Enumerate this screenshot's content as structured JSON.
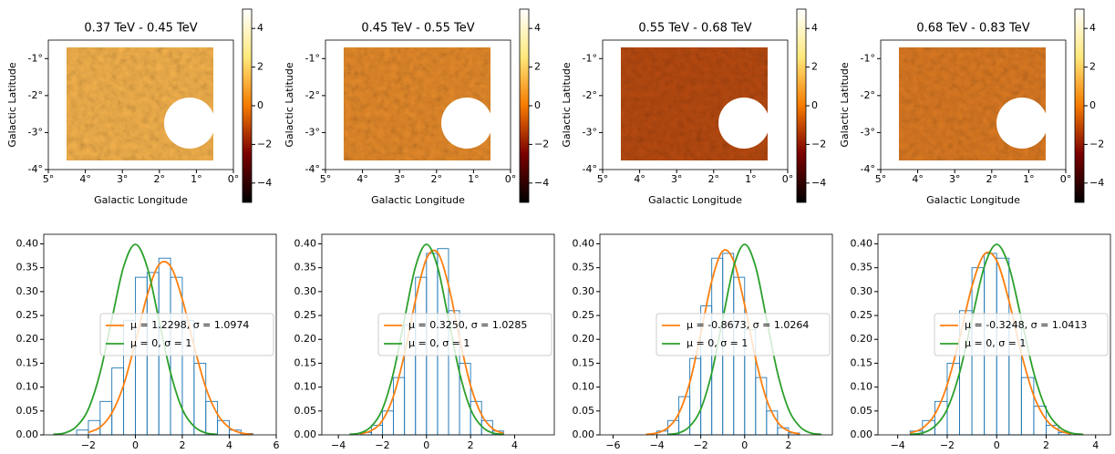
{
  "chart_data": [
    {
      "type": "image",
      "title": "0.37 TeV - 0.45 TeV",
      "xlabel": "Galactic Longitude",
      "ylabel": "Galactic Latitude",
      "color": "#f5b24c",
      "xlim": [
        5,
        0
      ],
      "ylim": [
        -4,
        -0.5
      ],
      "xticks": [
        {
          "value": 5,
          "label": "5°"
        },
        {
          "value": 4,
          "label": "4°"
        },
        {
          "value": 3,
          "label": "3°"
        },
        {
          "value": 2,
          "label": "2°"
        },
        {
          "value": 1,
          "label": "1°"
        },
        {
          "value": 0,
          "label": "0°"
        }
      ],
      "yticks": [
        {
          "value": -1,
          "label": "-1°"
        },
        {
          "value": -2,
          "label": "-2°"
        },
        {
          "value": -3,
          "label": "-3°"
        },
        {
          "value": -4,
          "label": "-4°"
        }
      ],
      "colormap": [
        "#000000",
        "#7a0000",
        "#f57a00",
        "#ffe87a",
        "#ffffff"
      ],
      "clim": [
        -5,
        5
      ],
      "cticks": [
        4,
        2,
        0,
        {
          "value": -2,
          "label": "−2"
        },
        {
          "value": -4,
          "label": "−4"
        }
      ]
    },
    {
      "type": "image",
      "title": "0.45 TeV - 0.55 TeV",
      "xlabel": "Galactic Longitude",
      "ylabel": "Galactic Latitude",
      "color": "#e58a2a",
      "xlim": [
        5,
        0
      ],
      "ylim": [
        -4,
        -0.5
      ],
      "xticks": [
        {
          "value": 5,
          "label": "5°"
        },
        {
          "value": 4,
          "label": "4°"
        },
        {
          "value": 3,
          "label": "3°"
        },
        {
          "value": 2,
          "label": "2°"
        },
        {
          "value": 1,
          "label": "1°"
        },
        {
          "value": 0,
          "label": "0°"
        }
      ],
      "yticks": [
        {
          "value": -1,
          "label": "-1°"
        },
        {
          "value": -2,
          "label": "-2°"
        },
        {
          "value": -3,
          "label": "-3°"
        },
        {
          "value": -4,
          "label": "-4°"
        }
      ],
      "colormap": [
        "#000000",
        "#7a0000",
        "#f57a00",
        "#ffe87a",
        "#ffffff"
      ],
      "clim": [
        -5,
        5
      ],
      "cticks": [
        4,
        2,
        0,
        {
          "value": -2,
          "label": "−2"
        },
        {
          "value": -4,
          "label": "−4"
        }
      ]
    },
    {
      "type": "image",
      "title": "0.55 TeV - 0.68 TeV",
      "xlabel": "Galactic Longitude",
      "ylabel": "Galactic Latitude",
      "color": "#b84a10",
      "xlim": [
        5,
        0
      ],
      "ylim": [
        -4,
        -0.5
      ],
      "xticks": [
        {
          "value": 5,
          "label": "5°"
        },
        {
          "value": 4,
          "label": "4°"
        },
        {
          "value": 3,
          "label": "3°"
        },
        {
          "value": 2,
          "label": "2°"
        },
        {
          "value": 1,
          "label": "1°"
        },
        {
          "value": 0,
          "label": "0°"
        }
      ],
      "yticks": [
        {
          "value": -1,
          "label": "-1°"
        },
        {
          "value": -2,
          "label": "-2°"
        },
        {
          "value": -3,
          "label": "-3°"
        },
        {
          "value": -4,
          "label": "-4°"
        }
      ],
      "colormap": [
        "#000000",
        "#7a0000",
        "#f57a00",
        "#ffe87a",
        "#ffffff"
      ],
      "clim": [
        -5,
        5
      ],
      "cticks": [
        4,
        2,
        0,
        {
          "value": -2,
          "label": "−2"
        },
        {
          "value": -4,
          "label": "−4"
        }
      ]
    },
    {
      "type": "image",
      "title": "0.68 TeV - 0.83 TeV",
      "xlabel": "Galactic Longitude",
      "ylabel": "Galactic Latitude",
      "color": "#dc7a22",
      "xlim": [
        5,
        0
      ],
      "ylim": [
        -4,
        -0.5
      ],
      "xticks": [
        {
          "value": 5,
          "label": "5°"
        },
        {
          "value": 4,
          "label": "4°"
        },
        {
          "value": 3,
          "label": "3°"
        },
        {
          "value": 2,
          "label": "2°"
        },
        {
          "value": 1,
          "label": "1°"
        },
        {
          "value": 0,
          "label": "0°"
        }
      ],
      "yticks": [
        {
          "value": -1,
          "label": "-1°"
        },
        {
          "value": -2,
          "label": "-2°"
        },
        {
          "value": -3,
          "label": "-3°"
        },
        {
          "value": -4,
          "label": "-4°"
        }
      ],
      "colormap": [
        "#000000",
        "#7a0000",
        "#f57a00",
        "#ffe87a",
        "#ffffff"
      ],
      "clim": [
        -5,
        5
      ],
      "cticks": [
        4,
        2,
        0,
        {
          "value": -2,
          "label": "−2"
        },
        {
          "value": -4,
          "label": "−4"
        }
      ]
    },
    {
      "type": "histogram",
      "color": "#1f77b4",
      "legend": "center right",
      "xlim": [
        -3.9,
        6.0
      ],
      "ylim": [
        0,
        0.42
      ],
      "xticks": [
        {
          "value": -2,
          "label": "−2"
        },
        0,
        2,
        4,
        6
      ],
      "yticks": [
        {
          "value": 0,
          "label": "0.00"
        },
        0.05,
        {
          "value": 0.1,
          "label": "0.10"
        },
        0.15,
        {
          "value": 0.2,
          "label": "0.20"
        },
        0.25,
        {
          "value": 0.3,
          "label": "0.30"
        },
        0.35,
        {
          "value": 0.4,
          "label": "0.40"
        }
      ],
      "bins": [
        -2.5,
        -2,
        -1.5,
        -1,
        -0.5,
        0,
        0.5,
        1,
        1.5,
        2,
        2.5,
        3,
        3.5,
        4,
        4.5,
        5
      ],
      "values": [
        0.01,
        0.03,
        0.07,
        0.14,
        0.24,
        0.33,
        0.34,
        0.37,
        0.33,
        0.24,
        0.15,
        0.07,
        0.03,
        0.01,
        0.003
      ],
      "series": [
        {
          "name": "μ = 1.2298, σ = 1.0974",
          "color": "#ff7f0e",
          "x": [
            -2,
            -1.5,
            -1,
            -0.5,
            0,
            0.5,
            1,
            1.5,
            2,
            2.5,
            3,
            3.5,
            4,
            4.5,
            5
          ],
          "values": [
            0.005,
            0.016,
            0.046,
            0.104,
            0.194,
            0.291,
            0.356,
            0.353,
            0.284,
            0.186,
            0.099,
            0.043,
            0.015,
            0.004,
            0.001
          ]
        },
        {
          "name": "μ = 0, σ = 1",
          "color": "#2ca02c",
          "x": [
            -3.5,
            -3,
            -2.5,
            -2,
            -1.5,
            -1,
            -0.5,
            0,
            0.5,
            1,
            1.5,
            2,
            2.5,
            3,
            3.5
          ],
          "values": [
            0.001,
            0.004,
            0.018,
            0.054,
            0.13,
            0.242,
            0.352,
            0.399,
            0.352,
            0.242,
            0.13,
            0.054,
            0.018,
            0.004,
            0.001
          ]
        }
      ]
    },
    {
      "type": "histogram",
      "color": "#1f77b4",
      "legend": "center right",
      "xlim": [
        -4.75,
        5.8
      ],
      "ylim": [
        0,
        0.42
      ],
      "xticks": [
        {
          "value": -4,
          "label": "−4"
        },
        {
          "value": -2,
          "label": "−2"
        },
        0,
        2,
        4
      ],
      "yticks": [
        {
          "value": 0,
          "label": "0.00"
        },
        0.05,
        {
          "value": 0.1,
          "label": "0.10"
        },
        0.15,
        {
          "value": 0.2,
          "label": "0.20"
        },
        0.25,
        {
          "value": 0.3,
          "label": "0.30"
        },
        0.35,
        {
          "value": 0.4,
          "label": "0.40"
        }
      ],
      "bins": [
        -3,
        -2.5,
        -2,
        -1.5,
        -1,
        -0.5,
        0,
        0.5,
        1,
        1.5,
        2,
        2.5,
        3,
        3.5
      ],
      "values": [
        0.005,
        0.02,
        0.05,
        0.12,
        0.23,
        0.33,
        0.38,
        0.39,
        0.26,
        0.15,
        0.07,
        0.03,
        0.008
      ],
      "series": [
        {
          "name": "μ = 0.3250, σ = 1.0285",
          "color": "#ff7f0e",
          "x": [
            -3,
            -2.5,
            -2,
            -1.5,
            -1,
            -0.5,
            0,
            0.5,
            1,
            1.5,
            2,
            2.5,
            3,
            3.5
          ],
          "values": [
            0.002,
            0.009,
            0.03,
            0.081,
            0.169,
            0.282,
            0.369,
            0.382,
            0.313,
            0.202,
            0.103,
            0.042,
            0.013,
            0.003
          ]
        },
        {
          "name": "μ = 0, σ = 1",
          "color": "#2ca02c",
          "x": [
            -3.5,
            -3,
            -2.5,
            -2,
            -1.5,
            -1,
            -0.5,
            0,
            0.5,
            1,
            1.5,
            2,
            2.5,
            3,
            3.5
          ],
          "values": [
            0.001,
            0.004,
            0.018,
            0.054,
            0.13,
            0.242,
            0.352,
            0.399,
            0.352,
            0.242,
            0.13,
            0.054,
            0.018,
            0.004,
            0.001
          ]
        }
      ]
    },
    {
      "type": "histogram",
      "color": "#1f77b4",
      "legend": "center right",
      "xlim": [
        -6.6,
        4.0
      ],
      "ylim": [
        0,
        0.42
      ],
      "xticks": [
        {
          "value": -6,
          "label": "−6"
        },
        {
          "value": -4,
          "label": "−4"
        },
        {
          "value": -2,
          "label": "−2"
        },
        0,
        2
      ],
      "yticks": [
        {
          "value": 0,
          "label": "0.00"
        },
        0.05,
        {
          "value": 0.1,
          "label": "0.10"
        },
        0.15,
        {
          "value": 0.2,
          "label": "0.20"
        },
        0.25,
        {
          "value": 0.3,
          "label": "0.30"
        },
        0.35,
        {
          "value": 0.4,
          "label": "0.40"
        }
      ],
      "bins": [
        -4,
        -3.5,
        -3,
        -2.5,
        -2,
        -1.5,
        -1,
        -0.5,
        0,
        0.5,
        1,
        1.5,
        2,
        2.5
      ],
      "values": [
        0.008,
        0.03,
        0.08,
        0.16,
        0.27,
        0.37,
        0.38,
        0.33,
        0.22,
        0.12,
        0.05,
        0.015,
        0.004
      ],
      "series": [
        {
          "name": "μ = -0.8673, σ = 1.0264",
          "color": "#ff7f0e",
          "x": [
            -4.5,
            -4,
            -3.5,
            -3,
            -2.5,
            -2,
            -1.5,
            -1,
            -0.5,
            0,
            0.5,
            1,
            1.5,
            2,
            2.5
          ],
          "values": [
            0.001,
            0.004,
            0.015,
            0.045,
            0.11,
            0.212,
            0.322,
            0.385,
            0.364,
            0.272,
            0.16,
            0.074,
            0.027,
            0.008,
            0.002
          ]
        },
        {
          "name": "μ = 0, σ = 1",
          "color": "#2ca02c",
          "x": [
            -3.5,
            -3,
            -2.5,
            -2,
            -1.5,
            -1,
            -0.5,
            0,
            0.5,
            1,
            1.5,
            2,
            2.5,
            3,
            3.5
          ],
          "values": [
            0.001,
            0.004,
            0.018,
            0.054,
            0.13,
            0.242,
            0.352,
            0.399,
            0.352,
            0.242,
            0.13,
            0.054,
            0.018,
            0.004,
            0.001
          ]
        }
      ]
    },
    {
      "type": "histogram",
      "color": "#1f77b4",
      "legend": "center right",
      "xlim": [
        -4.8,
        4.6
      ],
      "ylim": [
        0,
        0.42
      ],
      "xticks": [
        {
          "value": -4,
          "label": "−4"
        },
        {
          "value": -2,
          "label": "−2"
        },
        0,
        2,
        4
      ],
      "yticks": [
        {
          "value": 0,
          "label": "0.00"
        },
        0.05,
        {
          "value": 0.1,
          "label": "0.10"
        },
        0.15,
        {
          "value": 0.2,
          "label": "0.20"
        },
        0.25,
        {
          "value": 0.3,
          "label": "0.30"
        },
        0.35,
        {
          "value": 0.4,
          "label": "0.40"
        }
      ],
      "bins": [
        -3.5,
        -3,
        -2.5,
        -2,
        -1.5,
        -1,
        -0.5,
        0,
        0.5,
        1,
        1.5,
        2,
        2.5,
        3
      ],
      "values": [
        0.008,
        0.03,
        0.07,
        0.15,
        0.26,
        0.35,
        0.38,
        0.37,
        0.23,
        0.12,
        0.06,
        0.02,
        0.005
      ],
      "series": [
        {
          "name": "μ = -0.3248, σ = 1.0413",
          "color": "#ff7f0e",
          "x": [
            -3.5,
            -3,
            -2.5,
            -2,
            -1.5,
            -1,
            -0.5,
            0,
            0.5,
            1,
            1.5,
            2,
            2.5,
            3
          ],
          "values": [
            0.004,
            0.014,
            0.043,
            0.105,
            0.202,
            0.311,
            0.378,
            0.365,
            0.28,
            0.17,
            0.082,
            0.032,
            0.01,
            0.002
          ]
        },
        {
          "name": "μ = 0, σ = 1",
          "color": "#2ca02c",
          "x": [
            -3.5,
            -3,
            -2.5,
            -2,
            -1.5,
            -1,
            -0.5,
            0,
            0.5,
            1,
            1.5,
            2,
            2.5,
            3,
            3.5
          ],
          "values": [
            0.001,
            0.004,
            0.018,
            0.054,
            0.13,
            0.242,
            0.352,
            0.399,
            0.352,
            0.242,
            0.13,
            0.054,
            0.018,
            0.004,
            0.001
          ]
        }
      ]
    }
  ]
}
